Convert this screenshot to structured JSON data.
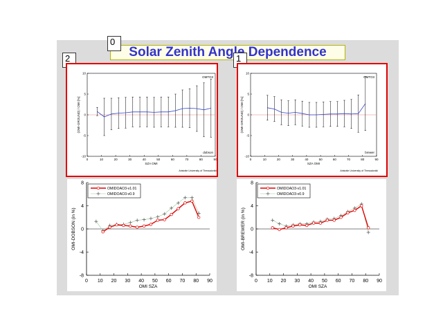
{
  "title": "Solar Zenith Angle Dependence",
  "markers": [
    "0",
    "2",
    "1"
  ],
  "colors": {
    "title_text": "#3333cc",
    "selection_border": "#e00000",
    "v101": "#e00000",
    "v09": "#555555",
    "mean_line": "#3344cc"
  },
  "chart_data": [
    {
      "type": "line",
      "panel": "top-left",
      "annotation_top": "OMTO3",
      "annotation_bottom": "dobson",
      "footer": "Aristotle University of Thessaloniki",
      "xlabel": "SZA OMI",
      "ylabel": "(OMI-GROUND) / OMI [%]",
      "xlim": [
        0,
        90
      ],
      "ylim": [
        -10,
        10
      ],
      "xticks": [
        0,
        10,
        20,
        30,
        40,
        50,
        60,
        70,
        80,
        90
      ],
      "yticks": [
        -10,
        -5,
        0,
        5,
        10
      ],
      "series": [
        {
          "x": [
            7,
            12,
            17,
            22,
            27,
            32,
            37,
            42,
            47,
            52,
            57,
            62,
            67,
            72,
            77,
            82,
            87
          ],
          "y": [
            0.8,
            -0.5,
            0.2,
            0.4,
            0.5,
            0.7,
            0.7,
            0.7,
            0.6,
            0.7,
            0.7,
            1.0,
            1.5,
            1.6,
            1.5,
            1.2,
            1.6
          ],
          "err": [
            1.0,
            4.5,
            3.8,
            3.7,
            3.7,
            3.6,
            3.6,
            3.6,
            3.6,
            3.6,
            3.6,
            4.0,
            4.5,
            4.7,
            5.5,
            6.5,
            7.0
          ]
        }
      ]
    },
    {
      "type": "line",
      "panel": "top-right",
      "annotation_top": "OMTO3",
      "annotation_bottom": "brewer",
      "footer": "Aristotle University of Thessaloniki",
      "xlabel": "SZA OMI",
      "ylabel": "(OMI-GROUND) / OMI [%]",
      "xlim": [
        0,
        90
      ],
      "ylim": [
        -10,
        10
      ],
      "xticks": [
        0,
        10,
        20,
        30,
        40,
        50,
        60,
        70,
        80,
        90
      ],
      "yticks": [
        -10,
        -5,
        0,
        5,
        10
      ],
      "series": [
        {
          "x": [
            12,
            17,
            22,
            27,
            32,
            37,
            42,
            47,
            52,
            57,
            62,
            67,
            72,
            77,
            82
          ],
          "y": [
            1.7,
            1.4,
            0.6,
            0.4,
            0.6,
            0.3,
            0.0,
            0.0,
            0.1,
            0.2,
            0.2,
            0.3,
            0.2,
            0.3,
            2.7
          ],
          "err": [
            3.0,
            3.0,
            3.0,
            3.0,
            3.0,
            3.0,
            3.0,
            3.0,
            3.0,
            3.0,
            3.0,
            3.2,
            3.5,
            4.5,
            6.5
          ]
        }
      ]
    },
    {
      "type": "line",
      "panel": "bottom-left",
      "xlabel": "OMI SZA",
      "ylabel": "OMI-DOBSON (in %)",
      "xlim": [
        0,
        90
      ],
      "ylim": [
        -8,
        8
      ],
      "xticks": [
        0,
        10,
        20,
        30,
        40,
        50,
        60,
        70,
        80,
        90
      ],
      "yticks": [
        -8,
        -4,
        0,
        4,
        8
      ],
      "series": [
        {
          "name": "OMIDOAO3-v1.01",
          "x": [
            12,
            17,
            22,
            27,
            32,
            37,
            42,
            47,
            52,
            57,
            62,
            67,
            72,
            77,
            82
          ],
          "y": [
            -0.5,
            0.3,
            0.7,
            0.6,
            0.5,
            0.3,
            0.5,
            0.8,
            1.5,
            1.6,
            2.5,
            3.5,
            4.5,
            4.8,
            2.0
          ]
        },
        {
          "name": "OMIDOAO3-v0.9",
          "x": [
            7,
            12,
            17,
            22,
            27,
            32,
            37,
            42,
            47,
            52,
            57,
            62,
            67,
            72,
            77,
            82
          ],
          "y": [
            1.3,
            -0.3,
            0.6,
            0.8,
            0.8,
            1.1,
            1.5,
            1.6,
            1.8,
            2.1,
            2.6,
            3.6,
            4.5,
            5.4,
            5.4,
            2.7
          ]
        }
      ]
    },
    {
      "type": "line",
      "panel": "bottom-right",
      "xlabel": "OMI SZA",
      "ylabel": "OMI-BREWER (in %)",
      "xlim": [
        0,
        90
      ],
      "ylim": [
        -8,
        8
      ],
      "xticks": [
        0,
        10,
        20,
        30,
        40,
        50,
        60,
        70,
        80,
        90
      ],
      "yticks": [
        -8,
        -4,
        0,
        4,
        8
      ],
      "series": [
        {
          "name": "OMIDOAO3-v1.01",
          "x": [
            12,
            17,
            22,
            27,
            32,
            37,
            42,
            47,
            52,
            57,
            62,
            67,
            72,
            77,
            82
          ],
          "y": [
            0.2,
            -0.1,
            0.2,
            0.5,
            0.7,
            0.6,
            1.0,
            1.0,
            1.5,
            1.5,
            2.0,
            2.8,
            3.2,
            4.0,
            0.2
          ]
        },
        {
          "name": "OMIDOAO3-v0.9",
          "x": [
            12,
            17,
            22,
            27,
            32,
            37,
            42,
            47,
            52,
            57,
            62,
            67,
            72,
            77,
            82
          ],
          "y": [
            1.5,
            0.9,
            0.5,
            0.7,
            0.9,
            0.9,
            1.2,
            1.3,
            1.7,
            1.8,
            2.3,
            3.0,
            3.6,
            4.3,
            -0.6
          ]
        }
      ]
    }
  ]
}
